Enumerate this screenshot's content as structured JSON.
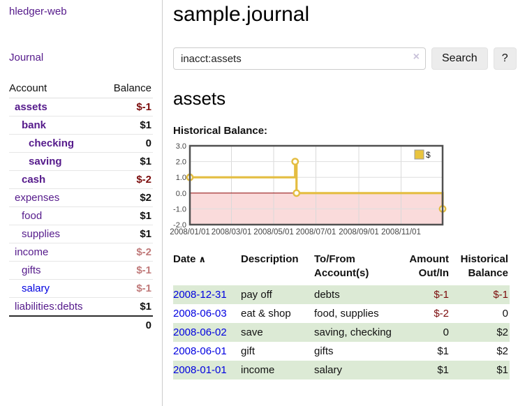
{
  "app": {
    "brand": "hledger-web",
    "nav_journal": "Journal"
  },
  "sidebar": {
    "col_account": "Account",
    "col_balance": "Balance",
    "accounts": [
      {
        "name": "assets",
        "indent": 1,
        "bold": true,
        "balance": "$-1",
        "val": "neg-strong",
        "link": "purple"
      },
      {
        "name": "bank",
        "indent": 2,
        "bold": true,
        "balance": "$1",
        "val": "pos",
        "link": "purple"
      },
      {
        "name": "checking",
        "indent": 3,
        "bold": true,
        "balance": "0",
        "val": "pos",
        "link": "purple"
      },
      {
        "name": "saving",
        "indent": 3,
        "bold": true,
        "balance": "$1",
        "val": "pos",
        "link": "purple"
      },
      {
        "name": "cash",
        "indent": 2,
        "bold": true,
        "balance": "$-2",
        "val": "neg-strong",
        "link": "purple"
      },
      {
        "name": "expenses",
        "indent": 1,
        "bold": false,
        "balance": "$2",
        "val": "pos",
        "link": "purple"
      },
      {
        "name": "food",
        "indent": 2,
        "bold": false,
        "balance": "$1",
        "val": "pos",
        "link": "purple"
      },
      {
        "name": "supplies",
        "indent": 2,
        "bold": false,
        "balance": "$1",
        "val": "pos",
        "link": "purple"
      },
      {
        "name": "income",
        "indent": 1,
        "bold": false,
        "balance": "$-2",
        "val": "neg-muted",
        "link": "purple"
      },
      {
        "name": "gifts",
        "indent": 2,
        "bold": false,
        "balance": "$-1",
        "val": "neg-muted",
        "link": "purple"
      },
      {
        "name": "salary",
        "indent": 2,
        "bold": false,
        "balance": "$-1",
        "val": "neg-muted",
        "link": "blue"
      },
      {
        "name": "liabilities:debts",
        "indent": 1,
        "bold": false,
        "balance": "$1",
        "val": "pos",
        "link": "purple"
      }
    ],
    "total": "0"
  },
  "header": {
    "title": "sample.journal"
  },
  "search": {
    "value": "inacct:assets",
    "clear_icon": "×",
    "button_label": "Search",
    "help_label": "?"
  },
  "account_page": {
    "heading": "assets",
    "chart_label": "Historical Balance:"
  },
  "chart_data": {
    "type": "line",
    "style": "step",
    "title": "Historical Balance",
    "x_domain": [
      "2008-01-01",
      "2008-12-31"
    ],
    "ylim": [
      -2.0,
      3.0
    ],
    "y_ticks": [
      3.0,
      2.0,
      1.0,
      0.0,
      -1.0,
      -2.0
    ],
    "x_ticks": [
      {
        "date": "2008-01-01",
        "label": "2008/01/01"
      },
      {
        "date": "2008-03-01",
        "label": "2008/03/01"
      },
      {
        "date": "2008-05-01",
        "label": "2008/05/01"
      },
      {
        "date": "2008-07-01",
        "label": "2008/07/01"
      },
      {
        "date": "2008-09-01",
        "label": "2008/09/01"
      },
      {
        "date": "2008-11-01",
        "label": "2008/11/01"
      }
    ],
    "series": [
      {
        "name": "$",
        "color": "#e4bd41",
        "points": [
          {
            "date": "2008-01-01",
            "value": 1.0
          },
          {
            "date": "2008-06-01",
            "value": 2.0
          },
          {
            "date": "2008-06-03",
            "value": 0.0
          },
          {
            "date": "2008-12-31",
            "value": -1.0
          }
        ]
      }
    ],
    "legend": {
      "label": "$",
      "swatch_color": "#e9c43e",
      "position": "top-right"
    },
    "negative_region_fill": "#fadbdb",
    "zero_line_color": "#8b0000",
    "grid": true
  },
  "register": {
    "headers": {
      "date": "Date",
      "sort_indicator": "∧",
      "description": "Description",
      "accounts_l1": "To/From",
      "accounts_l2": "Account(s)",
      "amount_l1": "Amount",
      "amount_l2": "Out/In",
      "balance_l1": "Historical",
      "balance_l2": "Balance"
    },
    "rows": [
      {
        "date": "2008-12-31",
        "description": "pay off",
        "accounts": "debts",
        "amount": "$-1",
        "amount_neg": true,
        "balance": "$-1",
        "balance_neg": true
      },
      {
        "date": "2008-06-03",
        "description": "eat & shop",
        "accounts": "food, supplies",
        "amount": "$-2",
        "amount_neg": true,
        "balance": "0",
        "balance_neg": false
      },
      {
        "date": "2008-06-02",
        "description": "save",
        "accounts": "saving, checking",
        "amount": "0",
        "amount_neg": false,
        "balance": "$2",
        "balance_neg": false
      },
      {
        "date": "2008-06-01",
        "description": "gift",
        "accounts": "gifts",
        "amount": "$1",
        "amount_neg": false,
        "balance": "$2",
        "balance_neg": false
      },
      {
        "date": "2008-01-01",
        "description": "income",
        "accounts": "salary",
        "amount": "$1",
        "amount_neg": false,
        "balance": "$1",
        "balance_neg": false
      }
    ]
  }
}
